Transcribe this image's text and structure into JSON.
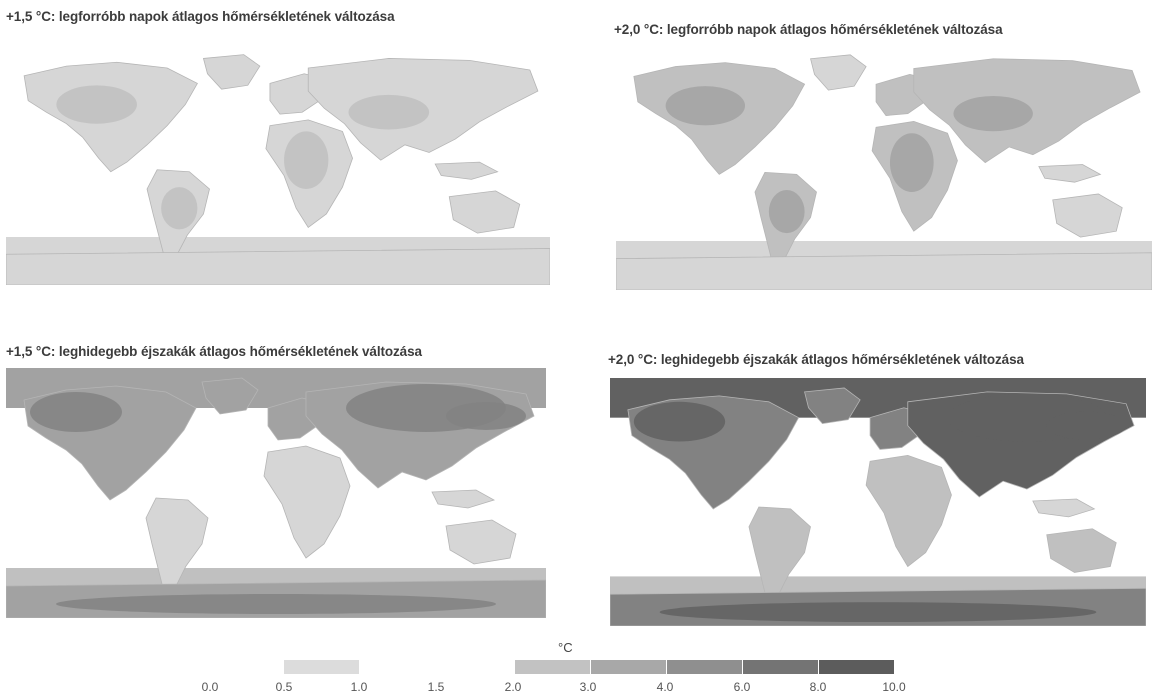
{
  "panels": [
    {
      "title": "+1,5 °C: legforróbb napok átlagos hőmérsékletének változása",
      "level": 0.3,
      "cold": false
    },
    {
      "title": "+2,0 °C: legforróbb napok átlagos hőmérsékletének változása",
      "level": 0.55,
      "cold": false
    },
    {
      "title": "+1,5 °C: leghidegebb éjszakák átlagos hőmérsékletének változása",
      "level": 0.7,
      "cold": true
    },
    {
      "title": "+2,0 °C: leghidegebb éjszakák átlagos hőmérsékletének változása",
      "level": 1.0,
      "cold": true
    }
  ],
  "legend": {
    "unit": "°C",
    "ticks": [
      "0.0",
      "0.5",
      "1.0",
      "1.5",
      "2.0",
      "3.0",
      "4.0",
      "6.0",
      "8.0",
      "10.0"
    ],
    "colors": [
      "#dcdcdc",
      "#c2c2c2",
      "#a8a8a8",
      "#8f8f8f",
      "#747474",
      "#5c5c5c"
    ]
  }
}
